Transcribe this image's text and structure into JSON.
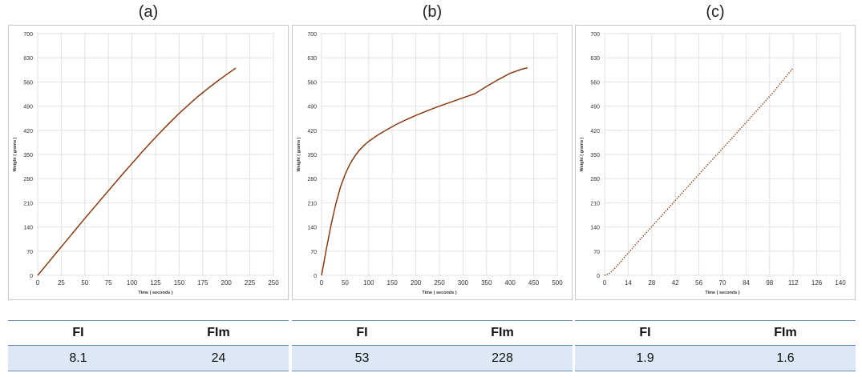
{
  "panels": [
    {
      "label": "(a)",
      "metrics": {
        "headers": [
          "FI",
          "FIm"
        ],
        "values": [
          "8.1",
          "24"
        ]
      }
    },
    {
      "label": "(b)",
      "metrics": {
        "headers": [
          "FI",
          "FIm"
        ],
        "values": [
          "53",
          "228"
        ]
      }
    },
    {
      "label": "(c)",
      "metrics": {
        "headers": [
          "FI",
          "FIm"
        ],
        "values": [
          "1.9",
          "1.6"
        ]
      }
    }
  ],
  "chart_data": [
    {
      "type": "line",
      "xlabel": "Time ( seconds )",
      "ylabel": "Weight ( grams )",
      "xlim": [
        0,
        250
      ],
      "ylim": [
        0,
        700
      ],
      "xticks": [
        0,
        25,
        50,
        75,
        100,
        125,
        150,
        175,
        200,
        225,
        250
      ],
      "yticks": [
        0,
        70,
        140,
        210,
        280,
        350,
        420,
        490,
        560,
        630,
        700
      ],
      "grid": true,
      "line_color": "#8b3a0f",
      "line_style": "solid",
      "x": [
        0,
        10,
        20,
        30,
        40,
        50,
        60,
        70,
        80,
        90,
        100,
        110,
        120,
        130,
        140,
        150,
        160,
        170,
        180,
        190,
        200,
        210
      ],
      "y": [
        0,
        33,
        66,
        99,
        132,
        165,
        197,
        229,
        261,
        293,
        324,
        355,
        385,
        414,
        442,
        469,
        494,
        518,
        540,
        561,
        581,
        600
      ]
    },
    {
      "type": "line",
      "xlabel": "Time ( seconds )",
      "ylabel": "Weight ( grams )",
      "xlim": [
        0,
        500
      ],
      "ylim": [
        0,
        700
      ],
      "xticks": [
        0,
        50,
        100,
        150,
        200,
        250,
        300,
        350,
        400,
        450,
        500
      ],
      "yticks": [
        0,
        70,
        140,
        210,
        280,
        350,
        420,
        490,
        560,
        630,
        700
      ],
      "grid": true,
      "line_color": "#8b3a0f",
      "line_style": "solid",
      "x": [
        0,
        10,
        20,
        30,
        40,
        50,
        60,
        70,
        80,
        90,
        100,
        120,
        140,
        160,
        180,
        200,
        225,
        250,
        275,
        300,
        325,
        350,
        375,
        400,
        425,
        437
      ],
      "y": [
        0,
        75,
        145,
        205,
        255,
        292,
        322,
        344,
        362,
        376,
        388,
        407,
        423,
        438,
        451,
        463,
        477,
        490,
        502,
        514,
        526,
        547,
        567,
        585,
        597,
        601
      ]
    },
    {
      "type": "line",
      "xlabel": "Time ( seconds )",
      "ylabel": "Weight ( grams )",
      "xlim": [
        0,
        140
      ],
      "ylim": [
        0,
        700
      ],
      "xticks": [
        0,
        14,
        28,
        42,
        56,
        70,
        84,
        98,
        112,
        126,
        140
      ],
      "yticks": [
        0,
        70,
        140,
        210,
        280,
        350,
        420,
        490,
        560,
        630,
        700
      ],
      "grid": true,
      "line_color": "#8b3a0f",
      "line_style": "dotted",
      "x": [
        0,
        3,
        6,
        10,
        14,
        20,
        30,
        40,
        50,
        60,
        70,
        80,
        90,
        100,
        112
      ],
      "y": [
        0,
        6,
        20,
        42,
        65,
        98,
        152,
        206,
        260,
        314,
        367,
        421,
        475,
        529,
        601
      ]
    }
  ]
}
